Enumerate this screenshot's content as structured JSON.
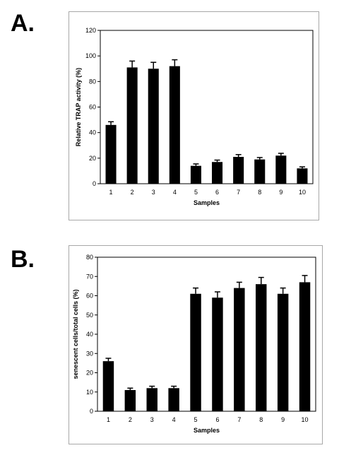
{
  "panels": [
    {
      "letter": "A.",
      "chart_data": {
        "type": "bar",
        "categories": [
          "1",
          "2",
          "3",
          "4",
          "5",
          "6",
          "7",
          "8",
          "9",
          "10"
        ],
        "values": [
          46,
          91,
          90,
          92,
          14,
          17,
          21,
          19,
          22,
          12
        ],
        "errors": [
          2.5,
          5,
          5,
          5,
          1.5,
          1.5,
          1.8,
          1.5,
          1.8,
          1.2
        ],
        "xlabel": "Samples",
        "ylabel": "Relative  TRAP activity  (%)",
        "ylim": [
          0,
          120
        ],
        "yticks": [
          0,
          20,
          40,
          60,
          80,
          100,
          120
        ],
        "grid": false,
        "bar_color": "#000000"
      }
    },
    {
      "letter": "B.",
      "chart_data": {
        "type": "bar",
        "categories": [
          "1",
          "2",
          "3",
          "4",
          "5",
          "6",
          "7",
          "8",
          "9",
          "10"
        ],
        "values": [
          26,
          11,
          12,
          12,
          61,
          59,
          64,
          66,
          61,
          67
        ],
        "errors": [
          1.5,
          1,
          1,
          1,
          3,
          3,
          3,
          3.5,
          3,
          3.5
        ],
        "xlabel": "Samples",
        "ylabel": "senescent cells/total cells (%)",
        "ylim": [
          0,
          80
        ],
        "yticks": [
          0,
          10,
          20,
          30,
          40,
          50,
          60,
          70,
          80
        ],
        "grid": false,
        "bar_color": "#000000"
      }
    }
  ]
}
